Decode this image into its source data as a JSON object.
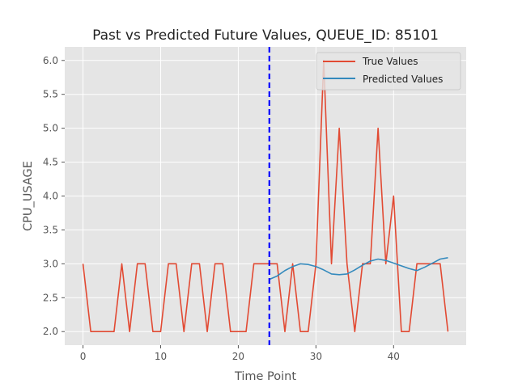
{
  "chart_data": {
    "type": "line",
    "title": "Past vs Predicted Future Values, QUEUE_ID: 85101",
    "xlabel": "Time Point",
    "ylabel": "CPU_USAGE",
    "xlim": [
      -2.35,
      49.35
    ],
    "ylim": [
      1.8,
      6.2
    ],
    "x_ticks": [
      0,
      10,
      20,
      30,
      40
    ],
    "y_ticks": [
      2.0,
      2.5,
      3.0,
      3.5,
      4.0,
      4.5,
      5.0,
      5.5,
      6.0
    ],
    "y_tick_labels": [
      "2.0",
      "2.5",
      "3.0",
      "3.5",
      "4.0",
      "4.5",
      "5.0",
      "5.5",
      "6.0"
    ],
    "grid": true,
    "legend_position": "top-right",
    "vline": {
      "x": 24,
      "color": "#0000ff",
      "style": "dashed"
    },
    "series": [
      {
        "name": "True Values",
        "color": "#e24a33",
        "x": [
          0,
          1,
          2,
          3,
          4,
          5,
          6,
          7,
          8,
          9,
          10,
          11,
          12,
          13,
          14,
          15,
          16,
          17,
          18,
          19,
          20,
          21,
          22,
          23,
          24,
          25,
          26,
          27,
          28,
          29,
          30,
          31,
          32,
          33,
          34,
          35,
          36,
          37,
          38,
          39,
          40,
          41,
          42,
          43,
          44,
          45,
          46,
          47
        ],
        "values": [
          3,
          2,
          2,
          2,
          2,
          3,
          2,
          3,
          3,
          2,
          2,
          3,
          3,
          2,
          3,
          3,
          2,
          3,
          3,
          2,
          2,
          2,
          3,
          3,
          3,
          3,
          2,
          3,
          2,
          2,
          3,
          6,
          3,
          5,
          3,
          2,
          3,
          3,
          5,
          3,
          4,
          2,
          2,
          3,
          3,
          3,
          3,
          2
        ]
      },
      {
        "name": "Predicted Values",
        "color": "#348abd",
        "x": [
          24,
          25,
          26,
          27,
          28,
          29,
          30,
          31,
          32,
          33,
          34,
          35,
          36,
          37,
          38,
          39,
          40,
          41,
          42,
          43,
          44,
          45,
          46,
          47
        ],
        "values": [
          2.77,
          2.82,
          2.9,
          2.96,
          3.0,
          2.99,
          2.96,
          2.91,
          2.85,
          2.84,
          2.85,
          2.91,
          2.98,
          3.04,
          3.07,
          3.05,
          3.01,
          2.97,
          2.93,
          2.9,
          2.95,
          3.01,
          3.07,
          3.09
        ]
      }
    ]
  }
}
